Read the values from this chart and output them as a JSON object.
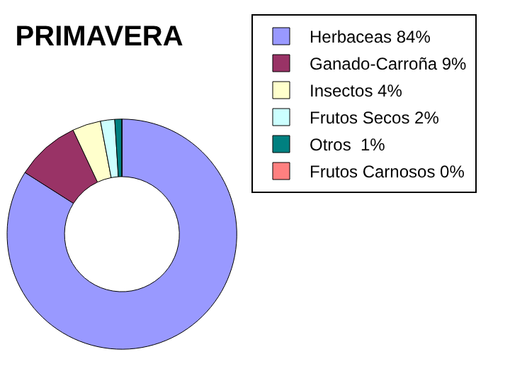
{
  "chart_data": {
    "type": "donut",
    "title": "PRIMAVERA",
    "categories": [
      "Herbaceas 84%",
      "Ganado-Carroña 9%",
      "Insectos 4%",
      "Frutos Secos 2%",
      "Otros  1%",
      "Frutos Carnosos 0%"
    ],
    "values": [
      84,
      9,
      4,
      2,
      1,
      0
    ],
    "colors": [
      "#9999ff",
      "#993366",
      "#ffffcc",
      "#ccffff",
      "#008080",
      "#ff8080"
    ],
    "legend": "right"
  }
}
